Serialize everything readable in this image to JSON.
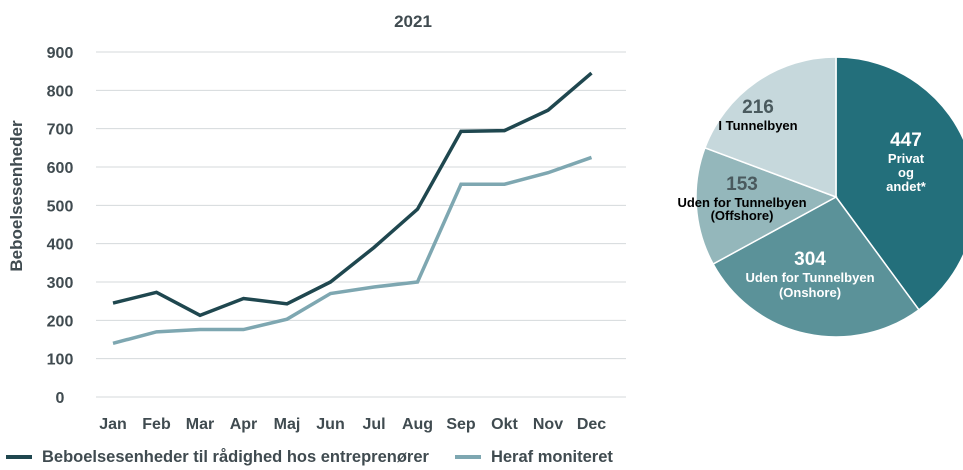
{
  "chart_data": [
    {
      "type": "line",
      "title": "2021",
      "xlabel": "",
      "ylabel": "Beboelsesenheder",
      "ylim": [
        0,
        900
      ],
      "yticks": [
        0,
        100,
        200,
        300,
        400,
        500,
        600,
        700,
        800,
        900
      ],
      "grid": true,
      "legend_position": "bottom",
      "categories": [
        "Jan",
        "Feb",
        "Mar",
        "Apr",
        "Maj",
        "Jun",
        "Jul",
        "Aug",
        "Sep",
        "Okt",
        "Nov",
        "Dec"
      ],
      "series": [
        {
          "name": "Beboelsesenheder til rådighed hos entreprenører",
          "color": "#1f474f",
          "values": [
            245,
            273,
            213,
            257,
            243,
            300,
            390,
            490,
            693,
            695,
            748,
            845
          ]
        },
        {
          "name": "Heraf moniteret",
          "color": "#7ea7b1",
          "values": [
            140,
            170,
            176,
            176,
            203,
            270,
            287,
            300,
            555,
            555,
            585,
            625
          ]
        }
      ]
    },
    {
      "type": "pie",
      "slices": [
        {
          "value": 447,
          "value_label": "447",
          "label_lines": [
            "Privat",
            "og",
            "andet*"
          ],
          "color": "#236f7b",
          "text_color": "#ffffff"
        },
        {
          "value": 304,
          "value_label": "304",
          "label_lines": [
            "Uden for Tunnelbyen",
            "(Onshore)"
          ],
          "color": "#5b9299",
          "text_color": "#ffffff"
        },
        {
          "value": 153,
          "value_label": "153",
          "label_lines": [
            "Uden for Tunnelbyen",
            "(Offshore)"
          ],
          "color": "#94b7bb",
          "text_color": "#000000",
          "value_color": "#4a5a5e"
        },
        {
          "value": 216,
          "value_label": "216",
          "label_lines": [
            "I Tunnelbyen"
          ],
          "color": "#c6d8dc",
          "text_color": "#000000",
          "value_color": "#4a5a5e"
        }
      ]
    }
  ],
  "legend": {
    "items": [
      {
        "label": "Beboelsesenheder til rådighed hos entreprenører",
        "color": "#1f474f"
      },
      {
        "label": "Heraf moniteret",
        "color": "#7ea7b1"
      }
    ]
  }
}
